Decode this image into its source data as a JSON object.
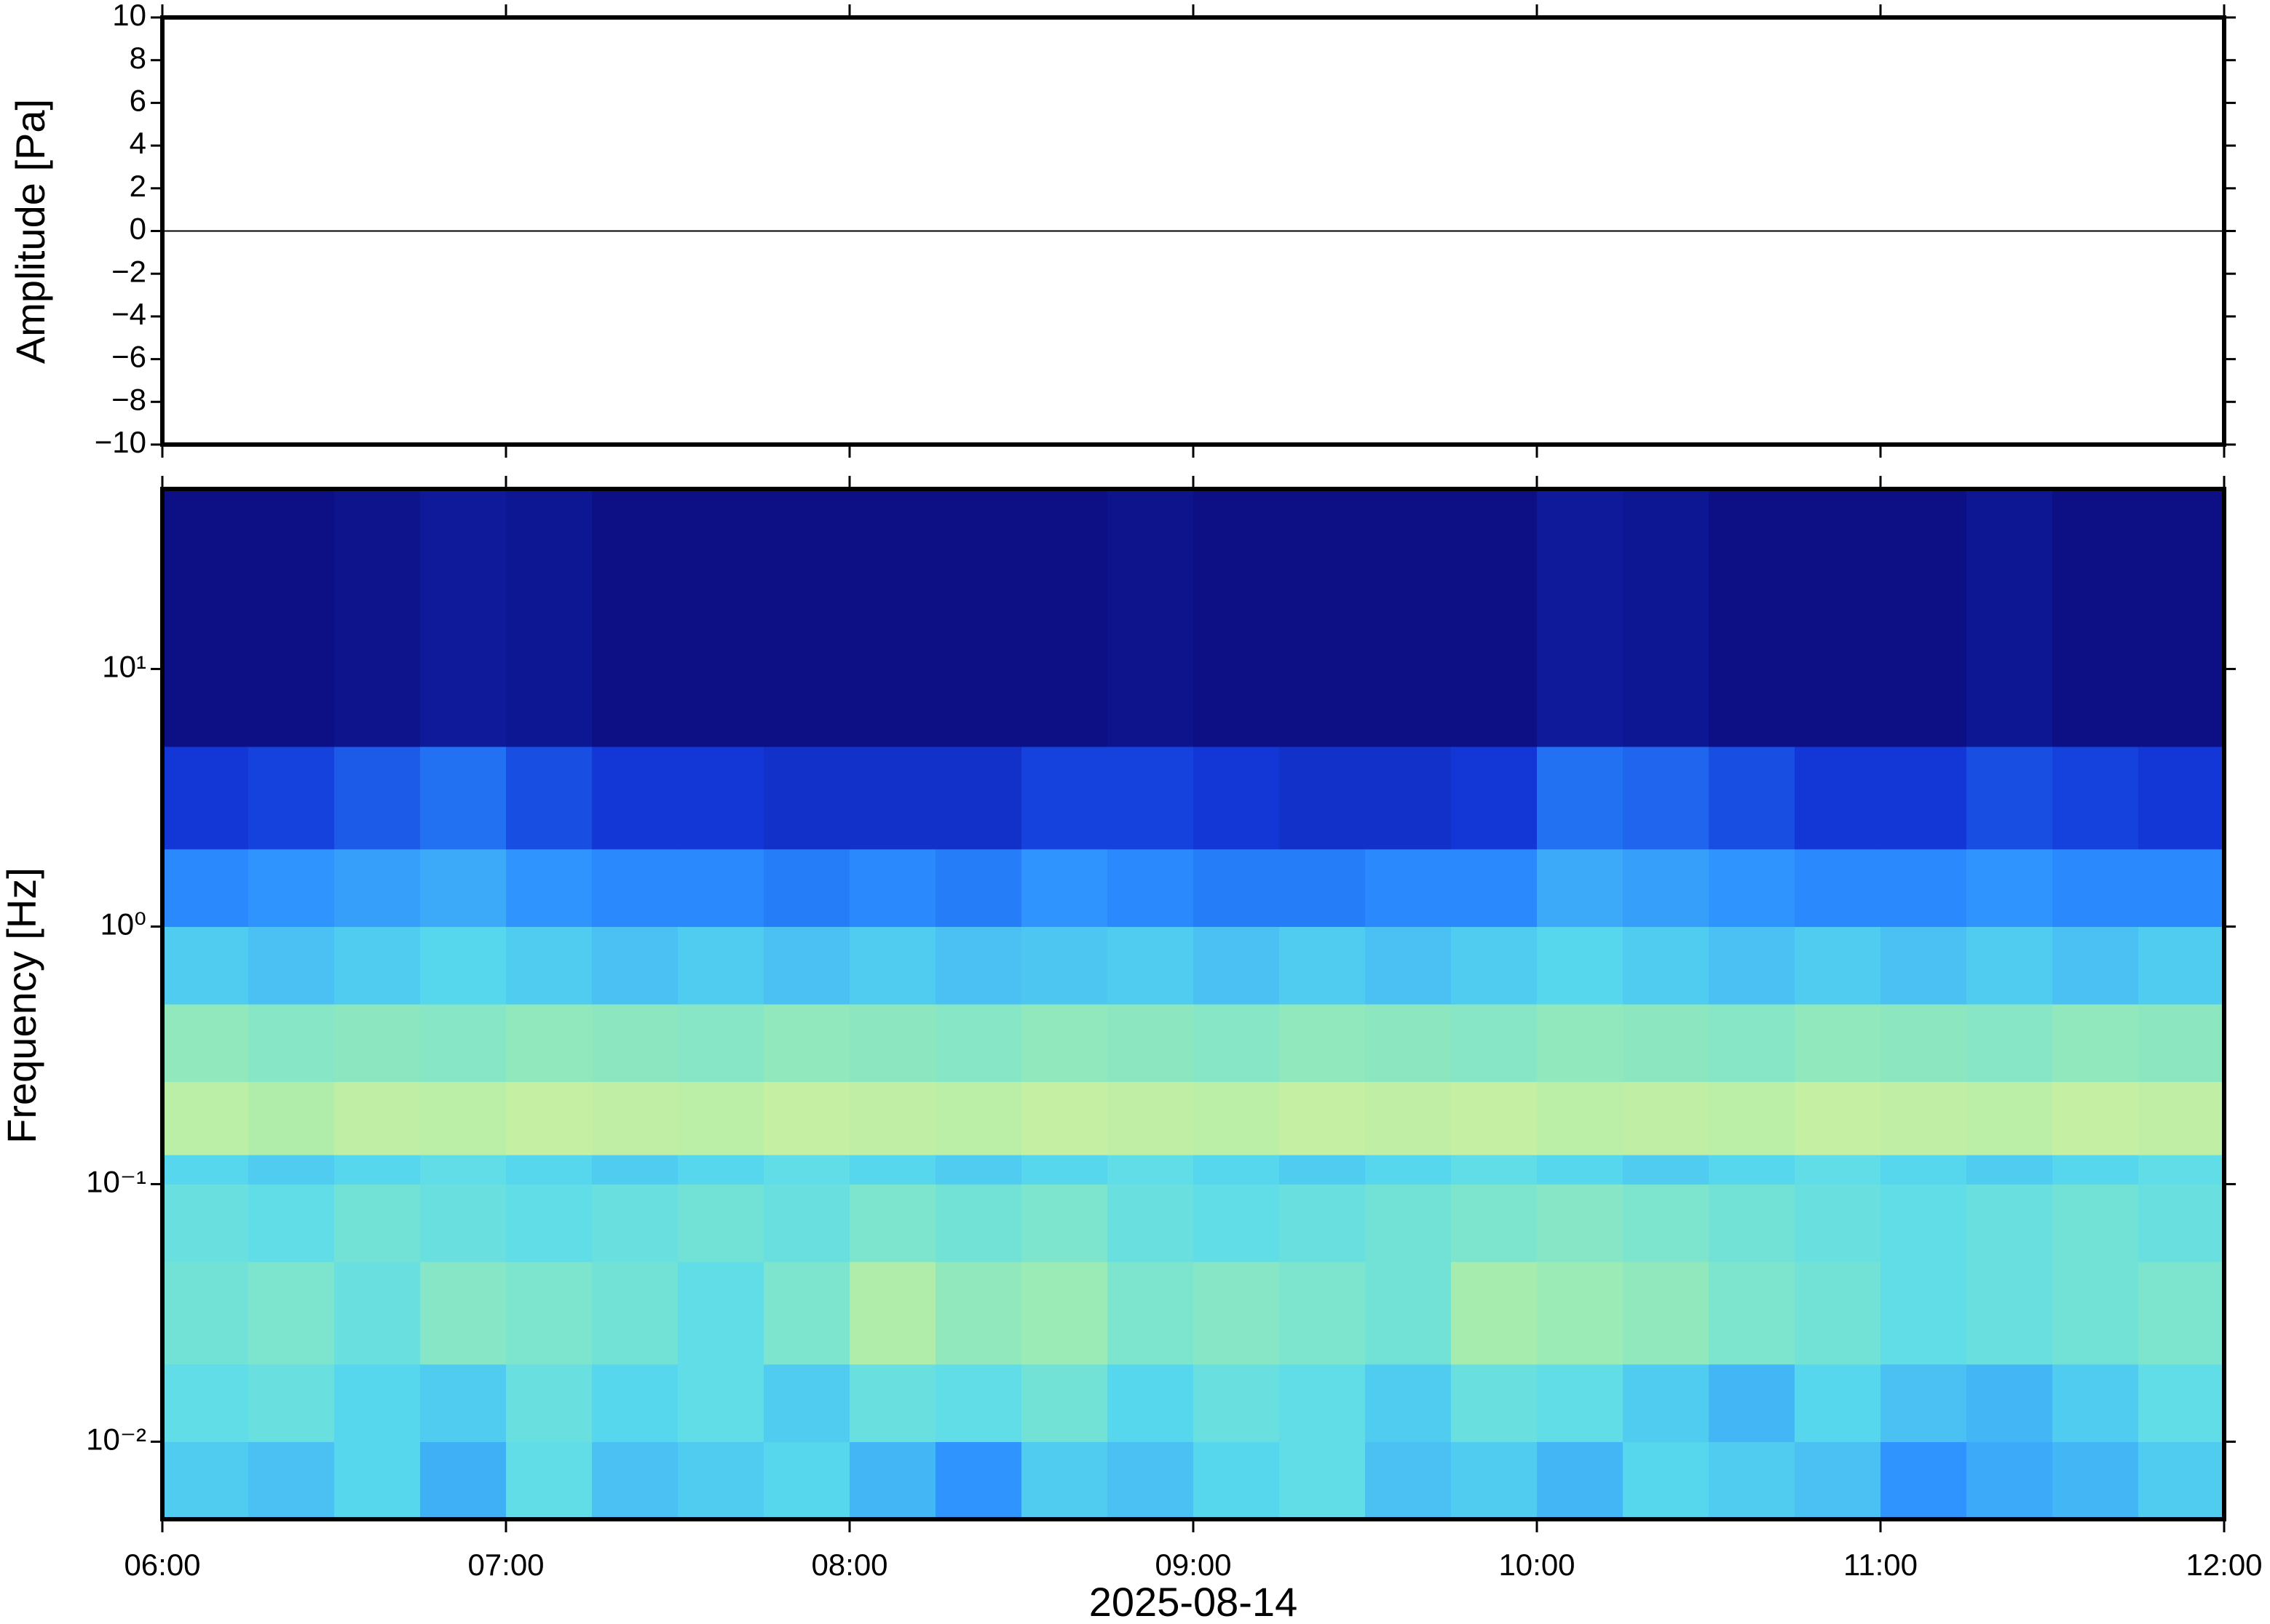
{
  "chart_data": [
    {
      "type": "line",
      "y_label": "Amplitude [Pa]",
      "x": [
        6,
        6.5,
        7,
        7.5,
        8,
        8.5,
        9,
        9.5,
        10,
        10.5,
        11,
        11.5,
        12
      ],
      "series": [
        {
          "color": "#000000",
          "values": [
            0,
            0,
            0,
            0,
            0,
            0,
            0,
            0,
            0,
            0,
            0,
            0,
            0
          ]
        }
      ],
      "xlim": [
        6,
        12
      ],
      "xticks": [
        6,
        7,
        8,
        9,
        10,
        11,
        12
      ],
      "ylim": [
        -10,
        10
      ],
      "yticks": [
        {
          "value": -10,
          "label": "−10"
        },
        {
          "value": -8,
          "label": "−8"
        },
        {
          "value": -6,
          "label": "−6"
        },
        {
          "value": -4,
          "label": "−4"
        },
        {
          "value": -2,
          "label": "−2"
        },
        0,
        2,
        4,
        6,
        8,
        10
      ]
    },
    {
      "type": "heatmap",
      "y_label": "Frequency [Hz]",
      "x_label": "2025-08-14",
      "log_y": true,
      "xlim": [
        6,
        12
      ],
      "xticks": [
        {
          "value": 6,
          "label": "06:00"
        },
        {
          "value": 7,
          "label": "07:00"
        },
        {
          "value": 8,
          "label": "08:00"
        },
        {
          "value": 9,
          "label": "09:00"
        },
        {
          "value": 10,
          "label": "10:00"
        },
        {
          "value": 11,
          "label": "11:00"
        },
        {
          "value": 12,
          "label": "12:00"
        }
      ],
      "ylim": [
        0.005,
        50
      ],
      "yticks": [
        {
          "value": 0.01,
          "label": "10⁻²"
        },
        {
          "value": 0.1,
          "label": "10⁻¹"
        },
        {
          "value": 1,
          "label": "10⁰"
        },
        {
          "value": 10,
          "label": "10¹"
        }
      ],
      "x_edges": [
        6,
        6.25,
        6.5,
        6.75,
        7,
        7.25,
        7.5,
        7.75,
        8,
        8.25,
        8.5,
        8.75,
        9,
        9.25,
        9.5,
        9.75,
        10,
        10.25,
        10.5,
        10.75,
        11,
        11.25,
        11.5,
        11.75,
        12
      ],
      "y_edges": [
        0.005,
        0.01,
        0.02,
        0.05,
        0.1,
        0.13,
        0.25,
        0.5,
        1,
        2,
        5,
        50
      ],
      "zlim": [
        0,
        100
      ],
      "colormap": [
        "#0c0a78",
        "#1238d8",
        "#2a8cff",
        "#5adcec",
        "#a0ecb0",
        "#eef294",
        "#f0a060",
        "#e03020"
      ],
      "values": [
        [
          40,
          38,
          42,
          35,
          44,
          38,
          40,
          42,
          36,
          30,
          40,
          38,
          42,
          44,
          38,
          40,
          36,
          42,
          40,
          38,
          30,
          34,
          36,
          40
        ],
        [
          44,
          46,
          42,
          40,
          46,
          42,
          44,
          40,
          46,
          44,
          48,
          42,
          46,
          44,
          40,
          46,
          44,
          40,
          36,
          42,
          38,
          36,
          40,
          44
        ],
        [
          48,
          50,
          46,
          52,
          50,
          48,
          44,
          50,
          60,
          54,
          56,
          50,
          52,
          50,
          48,
          58,
          56,
          54,
          50,
          48,
          44,
          46,
          48,
          50
        ],
        [
          46,
          44,
          48,
          46,
          44,
          46,
          48,
          46,
          50,
          48,
          50,
          46,
          44,
          46,
          48,
          50,
          52,
          50,
          48,
          46,
          44,
          46,
          48,
          46
        ],
        [
          42,
          40,
          42,
          44,
          42,
          40,
          42,
          44,
          42,
          40,
          42,
          44,
          42,
          40,
          42,
          44,
          42,
          40,
          42,
          44,
          42,
          40,
          42,
          44
        ],
        [
          62,
          60,
          63,
          62,
          64,
          63,
          62,
          64,
          63,
          62,
          64,
          63,
          62,
          64,
          63,
          64,
          62,
          63,
          62,
          64,
          63,
          62,
          64,
          63
        ],
        [
          54,
          52,
          53,
          52,
          54,
          53,
          52,
          54,
          53,
          52,
          54,
          53,
          52,
          54,
          53,
          52,
          54,
          53,
          52,
          54,
          53,
          52,
          54,
          53
        ],
        [
          40,
          38,
          40,
          42,
          40,
          38,
          40,
          38,
          40,
          38,
          39,
          40,
          38,
          40,
          38,
          40,
          42,
          40,
          38,
          40,
          38,
          40,
          38,
          40
        ],
        [
          28,
          30,
          32,
          34,
          30,
          28,
          28,
          26,
          28,
          26,
          30,
          28,
          26,
          26,
          28,
          28,
          34,
          32,
          30,
          28,
          28,
          30,
          28,
          28
        ],
        [
          14,
          16,
          20,
          24,
          18,
          14,
          14,
          12,
          12,
          12,
          16,
          16,
          14,
          12,
          12,
          14,
          24,
          22,
          18,
          14,
          14,
          18,
          16,
          14
        ],
        [
          2,
          2,
          3,
          5,
          4,
          2,
          2,
          2,
          2,
          2,
          2,
          3,
          2,
          2,
          2,
          2,
          5,
          4,
          2,
          2,
          2,
          4,
          2,
          2
        ]
      ]
    }
  ]
}
